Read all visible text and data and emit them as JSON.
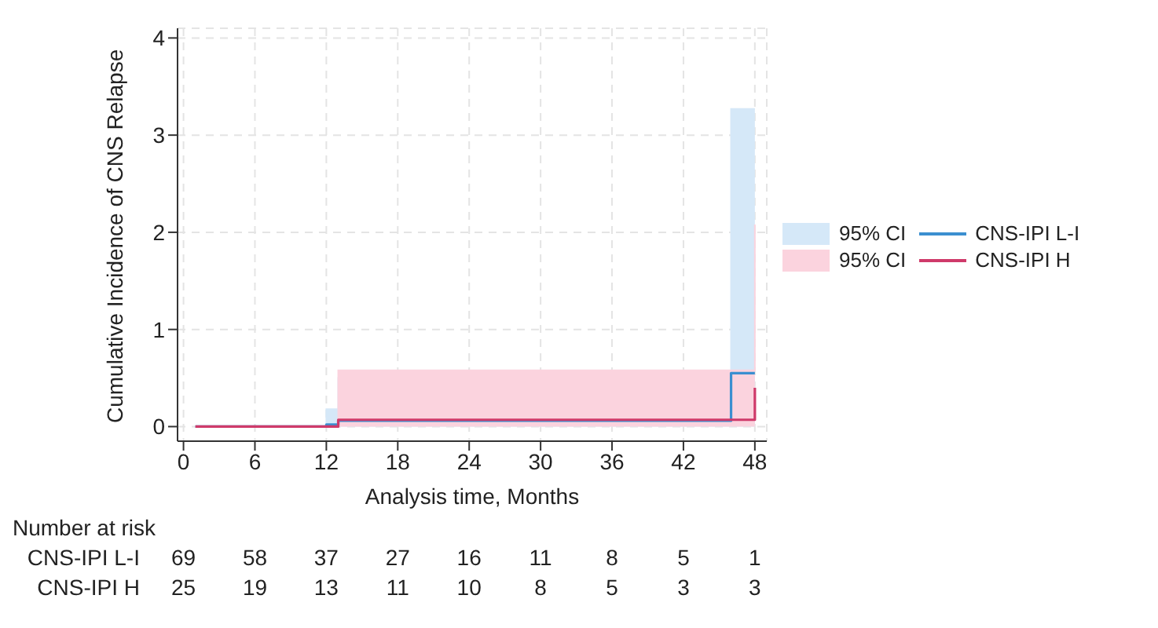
{
  "chart_data": {
    "type": "step",
    "xlabel": "Analysis time, Months",
    "ylabel": "Cumulative Incidence of CNS Relapse",
    "xlim": [
      -0.5,
      49
    ],
    "xticks": [
      0,
      6,
      12,
      18,
      24,
      30,
      36,
      42,
      48
    ],
    "ylim": [
      -0.15,
      4.1
    ],
    "yticks": [
      0,
      1,
      2,
      3,
      4
    ],
    "grid": true,
    "legend": "right",
    "marker": "none",
    "series": [
      {
        "name": "95% CI",
        "type": "area",
        "color": "#d5e8f8",
        "x": [
          1,
          12,
          13,
          46,
          48
        ],
        "values": [
          0,
          0.18,
          0.5,
          3.27,
          3.27
        ]
      },
      {
        "name": "95% CI",
        "type": "area",
        "color": "#fbd3de",
        "x": [
          1,
          13,
          46,
          48
        ],
        "values": [
          0,
          0.58,
          0.58,
          2.08
        ]
      },
      {
        "name": "CNS-IPI L-I",
        "color": "#3b8fd0",
        "x": [
          1,
          12,
          13,
          46,
          48
        ],
        "values": [
          0,
          0.02,
          0.06,
          0.55,
          0.55
        ]
      },
      {
        "name": "CNS-IPI H",
        "color": "#cf3a6a",
        "x": [
          1,
          13,
          46,
          48
        ],
        "values": [
          0,
          0.07,
          0.07,
          0.4
        ]
      }
    ],
    "annotations": [
      "Number at risk",
      "CNS-IPI L-I",
      "69",
      "58",
      "37",
      "27",
      "16",
      "11",
      "8",
      "5",
      "1",
      "CNS-IPI H",
      "25",
      "19",
      "13",
      "11",
      "10",
      "8",
      "5",
      "3",
      "3"
    ]
  }
}
